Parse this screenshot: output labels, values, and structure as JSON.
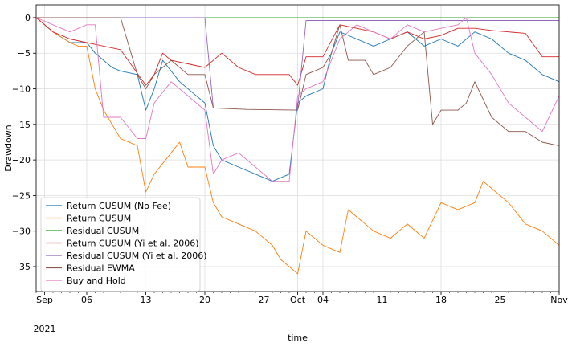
{
  "chart_data": {
    "type": "line",
    "xlabel": "time",
    "ylabel": "Drawdown",
    "x_range": [
      "2021-08-31",
      "2021-11-01"
    ],
    "ylim": [
      -38.5,
      1.8
    ],
    "grid": true,
    "legend_placement": "lower-left",
    "x_ticks": [
      {
        "date": "2021-09-01",
        "label": "Sep",
        "sublabel": "2021"
      },
      {
        "date": "2021-09-06",
        "label": "06"
      },
      {
        "date": "2021-09-13",
        "label": "13"
      },
      {
        "date": "2021-09-20",
        "label": "20"
      },
      {
        "date": "2021-09-27",
        "label": "27"
      },
      {
        "date": "2021-10-01",
        "label": "Oct"
      },
      {
        "date": "2021-10-04",
        "label": "04"
      },
      {
        "date": "2021-10-11",
        "label": "11"
      },
      {
        "date": "2021-10-18",
        "label": "18"
      },
      {
        "date": "2021-10-25",
        "label": "25"
      },
      {
        "date": "2021-11-01",
        "label": "Nov"
      }
    ],
    "y_ticks": [
      0,
      -5,
      -10,
      -15,
      -20,
      -25,
      -30,
      -35
    ],
    "series": [
      {
        "name": "Return CUSUM (No Fee)",
        "color": "#1f77b4",
        "x": [
          "2021-08-31",
          "2021-09-02",
          "2021-09-04",
          "2021-09-06",
          "2021-09-07",
          "2021-09-08",
          "2021-09-09",
          "2021-09-10",
          "2021-09-12",
          "2021-09-13",
          "2021-09-14",
          "2021-09-15",
          "2021-09-17",
          "2021-09-19",
          "2021-09-20",
          "2021-09-21",
          "2021-09-22",
          "2021-09-24",
          "2021-09-26",
          "2021-09-28",
          "2021-09-30",
          "2021-10-01",
          "2021-10-02",
          "2021-10-04",
          "2021-10-05",
          "2021-10-06",
          "2021-10-08",
          "2021-10-10",
          "2021-10-12",
          "2021-10-14",
          "2021-10-16",
          "2021-10-18",
          "2021-10-20",
          "2021-10-22",
          "2021-10-24",
          "2021-10-26",
          "2021-10-28",
          "2021-10-30",
          "2021-11-01"
        ],
        "y": [
          0,
          -2,
          -3.5,
          -3.5,
          -5,
          -6,
          -7,
          -7.5,
          -8,
          -13,
          -10,
          -6,
          -9,
          -11,
          -12,
          -18,
          -20,
          -21,
          -22,
          -23,
          -22,
          -12,
          -11,
          -10,
          -5,
          -2,
          -3,
          -4,
          -3,
          -2,
          -4,
          -3,
          -4,
          -2,
          -3,
          -5,
          -6,
          -8,
          -9
        ]
      },
      {
        "name": "Return CUSUM",
        "color": "#ff7f0e",
        "x": [
          "2021-08-31",
          "2021-09-02",
          "2021-09-04",
          "2021-09-05",
          "2021-09-06",
          "2021-09-07",
          "2021-09-08",
          "2021-09-09",
          "2021-09-10",
          "2021-09-12",
          "2021-09-13",
          "2021-09-14",
          "2021-09-16",
          "2021-09-17",
          "2021-09-18",
          "2021-09-20",
          "2021-09-21",
          "2021-09-22",
          "2021-09-24",
          "2021-09-26",
          "2021-09-28",
          "2021-09-29",
          "2021-09-30",
          "2021-10-01",
          "2021-10-02",
          "2021-10-04",
          "2021-10-06",
          "2021-10-07",
          "2021-10-08",
          "2021-10-10",
          "2021-10-12",
          "2021-10-14",
          "2021-10-16",
          "2021-10-18",
          "2021-10-20",
          "2021-10-22",
          "2021-10-23",
          "2021-10-24",
          "2021-10-26",
          "2021-10-28",
          "2021-10-30",
          "2021-11-01"
        ],
        "y": [
          0,
          -2,
          -3.5,
          -4,
          -4,
          -10,
          -13,
          -15,
          -17,
          -18,
          -24.5,
          -22,
          -19,
          -17.5,
          -21,
          -21,
          -26,
          -28,
          -29,
          -30,
          -32,
          -34,
          -35,
          -36,
          -30,
          -32,
          -33,
          -27,
          -28,
          -30,
          -31,
          -29,
          -31,
          -26,
          -27,
          -26,
          -23,
          -24,
          -26,
          -29,
          -30,
          -32
        ]
      },
      {
        "name": "Residual CUSUM",
        "color": "#2ca02c",
        "x": [
          "2021-08-31",
          "2021-11-01"
        ],
        "y": [
          0,
          0
        ]
      },
      {
        "name": "Return CUSUM (Yi et al. 2006)",
        "color": "#d62728",
        "x": [
          "2021-08-31",
          "2021-09-02",
          "2021-09-04",
          "2021-09-06",
          "2021-09-08",
          "2021-09-10",
          "2021-09-13",
          "2021-09-14",
          "2021-09-15",
          "2021-09-16",
          "2021-09-18",
          "2021-09-20",
          "2021-09-22",
          "2021-09-24",
          "2021-09-26",
          "2021-09-28",
          "2021-09-30",
          "2021-10-01",
          "2021-10-02",
          "2021-10-04",
          "2021-10-06",
          "2021-10-08",
          "2021-10-10",
          "2021-10-12",
          "2021-10-14",
          "2021-10-16",
          "2021-10-18",
          "2021-10-20",
          "2021-10-22",
          "2021-10-24",
          "2021-10-26",
          "2021-10-28",
          "2021-10-30",
          "2021-11-01"
        ],
        "y": [
          0,
          -2,
          -3,
          -3.5,
          -4,
          -4.5,
          -9.5,
          -8,
          -5,
          -6,
          -6.5,
          -7,
          -5,
          -7,
          -8,
          -8,
          -8,
          -9.5,
          -5.5,
          -5.5,
          -1,
          -1.5,
          -2,
          -3,
          -2,
          -3,
          -2.5,
          -1.5,
          -1.5,
          -1.8,
          -2,
          -2.2,
          -5.5,
          -5.5
        ]
      },
      {
        "name": "Residual CUSUM (Yi et al. 2006)",
        "color": "#9467bd",
        "x": [
          "2021-08-31",
          "2021-09-20",
          "2021-09-21",
          "2021-09-25",
          "2021-10-01",
          "2021-10-02",
          "2021-10-08",
          "2021-10-16",
          "2021-10-18",
          "2021-10-20",
          "2021-11-01"
        ],
        "y": [
          0,
          0,
          -12.7,
          -12.7,
          -12.7,
          -0.4,
          -0.4,
          -0.4,
          -0.4,
          -0.4,
          -0.4
        ]
      },
      {
        "name": "Residual EWMA",
        "color": "#8c564b",
        "x": [
          "2021-08-31",
          "2021-09-10",
          "2021-09-12",
          "2021-09-13",
          "2021-09-14",
          "2021-09-16",
          "2021-09-18",
          "2021-09-20",
          "2021-09-21",
          "2021-09-25",
          "2021-10-01",
          "2021-10-02",
          "2021-10-04",
          "2021-10-05",
          "2021-10-06",
          "2021-10-07",
          "2021-10-09",
          "2021-10-10",
          "2021-10-12",
          "2021-10-14",
          "2021-10-16",
          "2021-10-17",
          "2021-10-18",
          "2021-10-20",
          "2021-10-21",
          "2021-10-22",
          "2021-10-24",
          "2021-10-26",
          "2021-10-28",
          "2021-10-30",
          "2021-11-01"
        ],
        "y": [
          0,
          0,
          -8,
          -10,
          -8,
          -6,
          -8,
          -8,
          -12.7,
          -12.9,
          -13,
          -8,
          -7,
          -5,
          -1,
          -6,
          -6,
          -8,
          -7,
          -4,
          -2,
          -15,
          -13,
          -13,
          -12,
          -9,
          -14,
          -16,
          -16,
          -17.5,
          -18
        ]
      },
      {
        "name": "Buy and Hold",
        "color": "#e377c2",
        "x": [
          "2021-08-31",
          "2021-09-02",
          "2021-09-04",
          "2021-09-06",
          "2021-09-07",
          "2021-09-08",
          "2021-09-10",
          "2021-09-12",
          "2021-09-13",
          "2021-09-14",
          "2021-09-16",
          "2021-09-18",
          "2021-09-20",
          "2021-09-21",
          "2021-09-22",
          "2021-09-24",
          "2021-09-26",
          "2021-09-28",
          "2021-09-30",
          "2021-10-01",
          "2021-10-02",
          "2021-10-04",
          "2021-10-06",
          "2021-10-07",
          "2021-10-08",
          "2021-10-10",
          "2021-10-12",
          "2021-10-14",
          "2021-10-16",
          "2021-10-18",
          "2021-10-20",
          "2021-10-21",
          "2021-10-22",
          "2021-10-24",
          "2021-10-26",
          "2021-10-28",
          "2021-10-30",
          "2021-11-01"
        ],
        "y": [
          0,
          -1,
          -2,
          -1,
          -1,
          -14,
          -14,
          -17,
          -17,
          -12,
          -9,
          -11,
          -13,
          -22,
          -20,
          -19,
          -21,
          -23,
          -23,
          -11,
          -10,
          -9,
          -3,
          -2,
          -1,
          -2,
          -3,
          -1,
          -2,
          -1.5,
          -1,
          0,
          -5,
          -8,
          -12,
          -14,
          -16,
          -11
        ]
      }
    ]
  }
}
